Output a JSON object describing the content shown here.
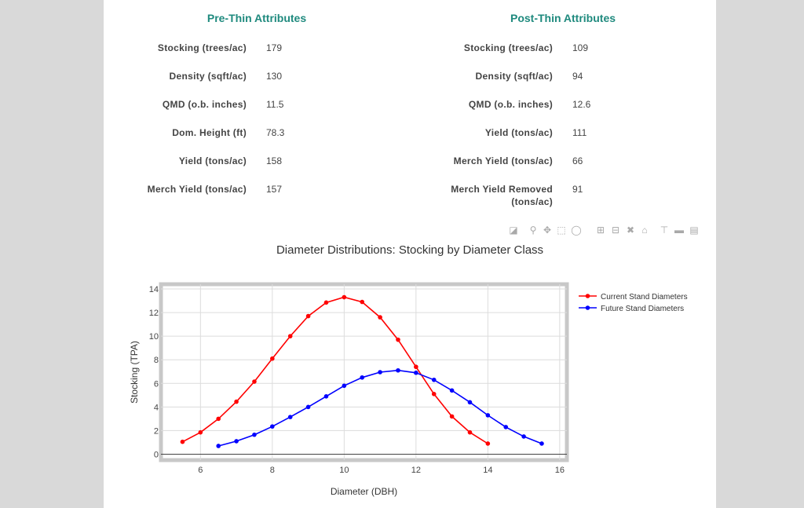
{
  "pre_thin": {
    "heading": "Pre-Thin Attributes",
    "rows": [
      {
        "label": "Stocking (trees/ac)",
        "value": "179"
      },
      {
        "label": "Density (sqft/ac)",
        "value": "130"
      },
      {
        "label": "QMD (o.b. inches)",
        "value": "11.5"
      },
      {
        "label": "Dom. Height (ft)",
        "value": "78.3"
      },
      {
        "label": "Yield (tons/ac)",
        "value": "158"
      },
      {
        "label": "Merch Yield (tons/ac)",
        "value": "157"
      }
    ]
  },
  "post_thin": {
    "heading": "Post-Thin Attributes",
    "rows": [
      {
        "label": "Stocking (trees/ac)",
        "value": "109"
      },
      {
        "label": "Density (sqft/ac)",
        "value": "94"
      },
      {
        "label": "QMD (o.b. inches)",
        "value": "12.6"
      },
      {
        "label": "Yield (tons/ac)",
        "value": "111"
      },
      {
        "label": "Merch Yield (tons/ac)",
        "value": "66"
      },
      {
        "label": "Merch Yield Removed (tons/ac)",
        "value": "91"
      }
    ]
  },
  "modebar": {
    "buttons": [
      "camera-icon",
      "zoom-icon",
      "pan-icon",
      "box-select-icon",
      "lasso-icon",
      "zoom-in-icon",
      "zoom-out-icon",
      "autoscale-icon",
      "home-icon",
      "spike-icon",
      "hover-closest-icon",
      "hover-compare-icon"
    ]
  },
  "chart_data": {
    "type": "line",
    "title": "Diameter Distributions: Stocking by Diameter Class",
    "xlabel": "Diameter (DBH)",
    "ylabel": "Stocking (TPA)",
    "xlim": [
      4.9,
      16.2
    ],
    "ylim": [
      -0.5,
      14.4
    ],
    "xticks": [
      6,
      8,
      10,
      12,
      14,
      16
    ],
    "yticks": [
      0,
      2,
      4,
      6,
      8,
      10,
      12,
      14
    ],
    "grid": true,
    "legend_position": "top-right",
    "series": [
      {
        "name": "Current Stand Diameters",
        "color": "#ff0000",
        "x": [
          5.5,
          6,
          6.5,
          7,
          7.5,
          8,
          8.5,
          9,
          9.5,
          10,
          10.5,
          11,
          11.5,
          12,
          12.5,
          13,
          13.5,
          14
        ],
        "y": [
          1.05,
          1.85,
          3.0,
          4.45,
          6.15,
          8.1,
          10.0,
          11.7,
          12.85,
          13.3,
          12.9,
          11.6,
          9.7,
          7.4,
          5.1,
          3.2,
          1.85,
          0.9
        ]
      },
      {
        "name": "Future Stand Diameters",
        "color": "#0000ff",
        "x": [
          6.5,
          7,
          7.5,
          8,
          8.5,
          9,
          9.5,
          10,
          10.5,
          11,
          11.5,
          12,
          12.5,
          13,
          13.5,
          14,
          14.5,
          15,
          15.5
        ],
        "y": [
          0.7,
          1.1,
          1.65,
          2.35,
          3.15,
          4.0,
          4.9,
          5.8,
          6.5,
          6.95,
          7.1,
          6.9,
          6.3,
          5.4,
          4.4,
          3.3,
          2.3,
          1.5,
          0.9
        ]
      }
    ]
  }
}
